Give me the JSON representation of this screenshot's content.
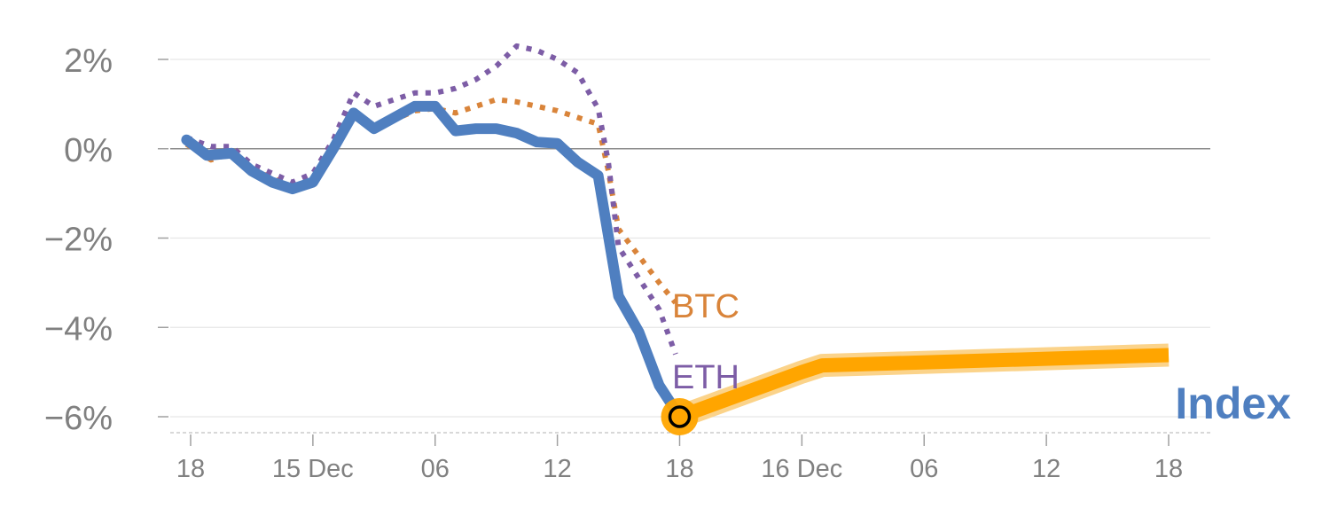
{
  "chart_data": {
    "type": "line",
    "y_unit": "%",
    "ylim": [
      -6.4,
      2.6
    ],
    "y_ticks": [
      {
        "value": 2,
        "label": "2%"
      },
      {
        "value": 0,
        "label": "0%"
      },
      {
        "value": -2,
        "label": "−2%"
      },
      {
        "value": -4,
        "label": "−4%"
      },
      {
        "value": -6,
        "label": "−6%"
      }
    ],
    "x_ticks": [
      {
        "value": 0,
        "label": "18"
      },
      {
        "value": 6,
        "label": "15 Dec"
      },
      {
        "value": 12,
        "label": "06"
      },
      {
        "value": 18,
        "label": "12"
      },
      {
        "value": 24,
        "label": "18"
      },
      {
        "value": 30,
        "label": "16 Dec"
      },
      {
        "value": 36,
        "label": "06"
      },
      {
        "value": 42,
        "label": "12"
      },
      {
        "value": 48,
        "label": "18"
      }
    ],
    "xlim": [
      -1,
      50
    ],
    "series": [
      {
        "name": "Index",
        "label": "Index",
        "color": "#4f7fc0",
        "style": "solid",
        "points": [
          [
            -0.2,
            0.2
          ],
          [
            0.8,
            -0.15
          ],
          [
            2,
            -0.1
          ],
          [
            3,
            -0.5
          ],
          [
            4,
            -0.75
          ],
          [
            5,
            -0.9
          ],
          [
            6,
            -0.75
          ],
          [
            7,
            0
          ],
          [
            8,
            0.8
          ],
          [
            9,
            0.45
          ],
          [
            10,
            0.7
          ],
          [
            11,
            0.95
          ],
          [
            12,
            0.95
          ],
          [
            13,
            0.4
          ],
          [
            14,
            0.45
          ],
          [
            15,
            0.45
          ],
          [
            16,
            0.35
          ],
          [
            17,
            0.15
          ],
          [
            18,
            0.12
          ],
          [
            19,
            -0.3
          ],
          [
            20,
            -0.6
          ],
          [
            21,
            -3.3
          ],
          [
            22,
            -4.1
          ],
          [
            23,
            -5.3
          ],
          [
            24,
            -6
          ]
        ]
      },
      {
        "name": "BTC",
        "label": "BTC",
        "color": "#d9843a",
        "style": "dotted",
        "points": [
          [
            -0.2,
            0.1
          ],
          [
            1,
            -0.25
          ],
          [
            2,
            -0.1
          ],
          [
            3,
            -0.45
          ],
          [
            4,
            -0.65
          ],
          [
            5,
            -0.85
          ],
          [
            6,
            -0.7
          ],
          [
            7,
            -0.1
          ],
          [
            8,
            0.7
          ],
          [
            9,
            0.5
          ],
          [
            10,
            0.65
          ],
          [
            11,
            0.85
          ],
          [
            12,
            0.9
          ],
          [
            13,
            0.8
          ],
          [
            14,
            0.95
          ],
          [
            15,
            1.1
          ],
          [
            16,
            1.05
          ],
          [
            17,
            0.95
          ],
          [
            18,
            0.85
          ],
          [
            19,
            0.7
          ],
          [
            20,
            0.55
          ],
          [
            20.5,
            -0.5
          ],
          [
            21,
            -1.8
          ],
          [
            22,
            -2.4
          ],
          [
            23,
            -3.0
          ],
          [
            23.8,
            -3.45
          ]
        ]
      },
      {
        "name": "ETH",
        "label": "ETH",
        "color": "#7d5da6",
        "style": "dotted",
        "points": [
          [
            -0.2,
            0.25
          ],
          [
            1,
            0.05
          ],
          [
            2,
            0.05
          ],
          [
            3,
            -0.35
          ],
          [
            4,
            -0.55
          ],
          [
            5,
            -0.75
          ],
          [
            6,
            -0.55
          ],
          [
            7,
            0.2
          ],
          [
            8,
            1.25
          ],
          [
            9,
            0.95
          ],
          [
            10,
            1.1
          ],
          [
            11,
            1.25
          ],
          [
            12,
            1.25
          ],
          [
            13,
            1.35
          ],
          [
            14,
            1.55
          ],
          [
            15,
            1.85
          ],
          [
            16,
            2.3
          ],
          [
            17,
            2.2
          ],
          [
            18,
            2.0
          ],
          [
            19,
            1.7
          ],
          [
            20,
            0.9
          ],
          [
            20.5,
            -0.3
          ],
          [
            21,
            -2.2
          ],
          [
            22,
            -2.9
          ],
          [
            23,
            -3.6
          ],
          [
            23.8,
            -4.6
          ]
        ]
      },
      {
        "name": "Index projection",
        "label": "",
        "color": "#ffa500",
        "halo_color": "#fbd38a",
        "style": "thick",
        "points": [
          [
            24,
            -6
          ],
          [
            30,
            -5
          ],
          [
            31,
            -4.85
          ],
          [
            48,
            -4.62
          ]
        ]
      }
    ],
    "current_point": {
      "x": 24,
      "y": -6,
      "color": "#ffa500"
    }
  }
}
